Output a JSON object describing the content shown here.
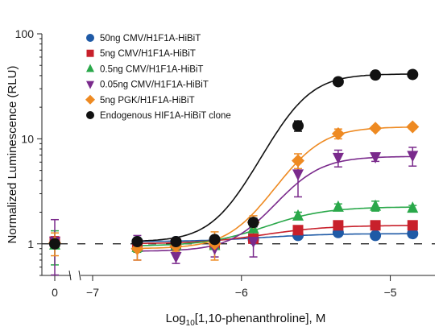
{
  "chart_data": {
    "type": "scatter",
    "xlabel_main": "Log",
    "xlabel_sub": "10",
    "xlabel_rest": "[1,10-phenanthroline], M",
    "ylabel": "Normalized Luminescence (RLU)",
    "yscale": "log",
    "ylim": [
      0.5,
      100
    ],
    "xlim": [
      -7.0,
      -4.7
    ],
    "x_ticks": [
      -7,
      -6,
      -5
    ],
    "x_tick_labels": [
      "−7",
      "−6",
      "−5"
    ],
    "zero_tick_label": "0",
    "y_ticks": [
      1,
      10,
      100
    ],
    "y_tick_labels": [
      "1",
      "10",
      "100"
    ],
    "baseline": 1,
    "legend_position": "top-left",
    "series": [
      {
        "name": "50ng CMV/H1F1A-HiBiT",
        "color": "#1f5aa6",
        "marker": "circle",
        "zero_point": {
          "y": 1.0,
          "err": 0.08
        },
        "points": [
          {
            "x": -6.7,
            "y": 1.05,
            "err": 0.05
          },
          {
            "x": -6.44,
            "y": 1.05,
            "err": 0.04
          },
          {
            "x": -6.18,
            "y": 1.07,
            "err": 0.05
          },
          {
            "x": -5.92,
            "y": 1.1,
            "err": 0.05
          },
          {
            "x": -5.62,
            "y": 1.2,
            "err": 0.05
          },
          {
            "x": -5.35,
            "y": 1.28,
            "err": 0.08
          },
          {
            "x": -5.1,
            "y": 1.2,
            "err": 0.05
          },
          {
            "x": -4.85,
            "y": 1.25,
            "err": 0.05
          }
        ],
        "curve": {
          "bottom": 1.05,
          "top": 1.25,
          "logec50": -5.85,
          "hill": 2.0
        }
      },
      {
        "name": "5ng CMV/H1F1A-HiBiT",
        "color": "#c8202b",
        "marker": "square",
        "zero_point": {
          "y": 1.05,
          "err": 0.12
        },
        "points": [
          {
            "x": -6.7,
            "y": 0.97,
            "err": 0.1
          },
          {
            "x": -6.44,
            "y": 1.0,
            "err": 0.06
          },
          {
            "x": -6.18,
            "y": 1.0,
            "err": 0.05
          },
          {
            "x": -5.92,
            "y": 1.12,
            "err": 0.06
          },
          {
            "x": -5.62,
            "y": 1.35,
            "err": 0.07
          },
          {
            "x": -5.35,
            "y": 1.5,
            "err": 0.08
          },
          {
            "x": -5.1,
            "y": 1.5,
            "err": 0.07
          },
          {
            "x": -4.85,
            "y": 1.5,
            "err": 0.06
          }
        ],
        "curve": {
          "bottom": 1.0,
          "top": 1.5,
          "logec50": -5.8,
          "hill": 2.0
        }
      },
      {
        "name": "0.5ng CMV/H1F1A-HiBiT",
        "color": "#2aa84a",
        "marker": "triangle-up",
        "zero_point": {
          "y": 0.98,
          "err": 0.35
        },
        "points": [
          {
            "x": -6.7,
            "y": 0.93,
            "err": 0.1
          },
          {
            "x": -6.44,
            "y": 0.97,
            "err": 0.07
          },
          {
            "x": -6.18,
            "y": 0.97,
            "err": 0.08
          },
          {
            "x": -5.92,
            "y": 1.4,
            "err": 0.12
          },
          {
            "x": -5.62,
            "y": 1.85,
            "err": 0.15
          },
          {
            "x": -5.35,
            "y": 2.25,
            "err": 0.15
          },
          {
            "x": -5.1,
            "y": 2.3,
            "err": 0.25
          },
          {
            "x": -4.85,
            "y": 2.2,
            "err": 0.12
          }
        ],
        "curve": {
          "bottom": 0.95,
          "top": 2.25,
          "logec50": -5.75,
          "hill": 2.2
        }
      },
      {
        "name": "0.05ng CMV/H1F1A-HiBiT",
        "color": "#7a2a8c",
        "marker": "triangle-down",
        "zero_point": {
          "y": 1.05,
          "err": 0.65
        },
        "points": [
          {
            "x": -6.7,
            "y": 0.95,
            "err": 0.25
          },
          {
            "x": -6.44,
            "y": 0.75,
            "err": 0.1
          },
          {
            "x": -6.18,
            "y": 0.9,
            "err": 0.15
          },
          {
            "x": -5.92,
            "y": 1.05,
            "err": 0.3
          },
          {
            "x": -5.62,
            "y": 4.6,
            "err": 1.8
          },
          {
            "x": -5.35,
            "y": 6.6,
            "err": 1.2
          },
          {
            "x": -5.1,
            "y": 6.7,
            "err": 0.6
          },
          {
            "x": -4.85,
            "y": 6.9,
            "err": 1.4
          }
        ],
        "curve": {
          "bottom": 0.85,
          "top": 6.8,
          "logec50": -5.62,
          "hill": 3.0
        }
      },
      {
        "name": "5ng PGK/H1F1A-HiBiT",
        "color": "#ee8a22",
        "marker": "diamond",
        "zero_point": {
          "y": 1.02,
          "err": 0.25
        },
        "points": [
          {
            "x": -6.7,
            "y": 0.9,
            "err": 0.2
          },
          {
            "x": -6.44,
            "y": 0.95,
            "err": 0.1
          },
          {
            "x": -6.18,
            "y": 1.0,
            "err": 0.3
          },
          {
            "x": -5.92,
            "y": 1.6,
            "err": 0.25
          },
          {
            "x": -5.62,
            "y": 6.2,
            "err": 1.0
          },
          {
            "x": -5.35,
            "y": 11.2,
            "err": 1.2
          },
          {
            "x": -5.1,
            "y": 12.6,
            "err": 0.6
          },
          {
            "x": -4.85,
            "y": 13.0,
            "err": 0.6
          }
        ],
        "curve": {
          "bottom": 0.9,
          "top": 13.0,
          "logec50": -5.58,
          "hill": 3.0
        }
      },
      {
        "name": "Endogenous HIF1A-HiBiT clone",
        "color": "#111111",
        "marker": "circle",
        "zero_point": {
          "y": 1.0,
          "err": 0.08
        },
        "points": [
          {
            "x": -6.7,
            "y": 1.05,
            "err": 0.05
          },
          {
            "x": -6.44,
            "y": 1.05,
            "err": 0.05
          },
          {
            "x": -6.18,
            "y": 1.1,
            "err": 0.08
          },
          {
            "x": -5.92,
            "y": 1.6,
            "err": 0.15
          },
          {
            "x": -5.62,
            "y": 13.3,
            "err": 1.5
          },
          {
            "x": -5.35,
            "y": 35.0,
            "err": 2.0
          },
          {
            "x": -5.1,
            "y": 40.5,
            "err": 2.0
          },
          {
            "x": -4.85,
            "y": 41.0,
            "err": 2.0
          }
        ],
        "curve": {
          "bottom": 1.05,
          "top": 41.5,
          "logec50": -5.62,
          "hill": 3.2
        }
      }
    ]
  }
}
